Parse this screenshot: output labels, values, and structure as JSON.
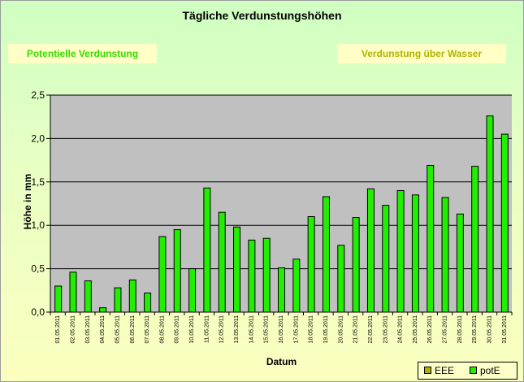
{
  "chart_data": {
    "type": "bar",
    "title": "Tägliche Verdunstungshöhen",
    "xlabel": "Datum",
    "ylabel": "Höhe in mm",
    "ylim": [
      0,
      2.5
    ],
    "yticks": [
      0,
      0.5,
      1,
      1.5,
      2,
      2.5
    ],
    "ytick_labels": [
      "0,0",
      "0,5",
      "1,0",
      "1,5",
      "2,0",
      "2,5"
    ],
    "grid": true,
    "legend_position": "bottom-right",
    "categories": [
      "01.05.2011",
      "02.05.2011",
      "03.05.2011",
      "04.05.2011",
      "05.05.2011",
      "06.05.2011",
      "07.05.2011",
      "08.05.2011",
      "09.05.2011",
      "10.05.2011",
      "11.05.2011",
      "12.05.2011",
      "13.05.2011",
      "14.05.2011",
      "15.05.2011",
      "16.05.2011",
      "17.05.2011",
      "18.05.2011",
      "19.05.2011",
      "20.05.2011",
      "21.05.2011",
      "22.05.2011",
      "23.05.2011",
      "24.05.2011",
      "25.05.2011",
      "26.05.2011",
      "27.05.2011",
      "28.05.2011",
      "29.05.2011",
      "30.05.2011",
      "31.05.2011"
    ],
    "series": [
      {
        "name": "EEE",
        "color": "#b0b000",
        "values": [
          0,
          0,
          0,
          0,
          0,
          0,
          0,
          0,
          0,
          0,
          0,
          0,
          0,
          0,
          0,
          0,
          0,
          0,
          0,
          0,
          0,
          0,
          0,
          0,
          0,
          0,
          0,
          0,
          0,
          0,
          0
        ]
      },
      {
        "name": "potE",
        "color": "#22ee00",
        "values": [
          0.3,
          0.46,
          0.36,
          0.05,
          0.28,
          0.37,
          0.22,
          0.87,
          0.95,
          0.5,
          1.43,
          1.15,
          0.98,
          0.83,
          0.85,
          0.51,
          0.61,
          1.1,
          1.33,
          0.77,
          1.09,
          1.42,
          1.23,
          1.4,
          1.35,
          1.69,
          1.32,
          1.13,
          1.68,
          2.26,
          2.05
        ]
      }
    ]
  },
  "buttons": {
    "potential_label": "Potentielle Verdunstung",
    "water_label": "Verdunstung über Wasser"
  },
  "colors": {
    "plot_background": "#c0c0c0",
    "gridline": "#000000",
    "potential_button_text": "#33dd00",
    "water_button_text": "#b2b200"
  }
}
